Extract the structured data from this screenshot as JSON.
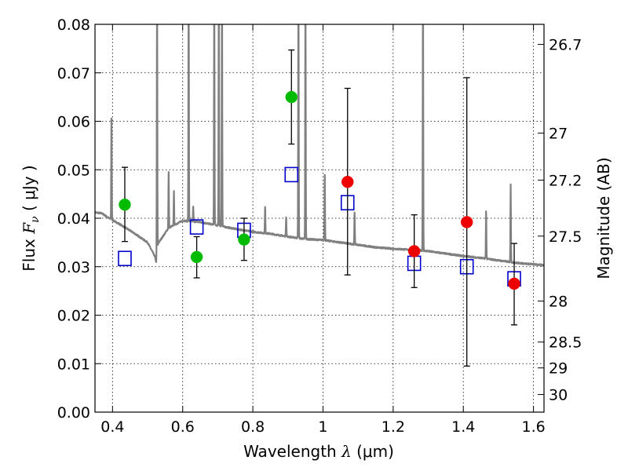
{
  "chart_data": {
    "type": "scatter",
    "xlabel": "Wavelength",
    "xlabel_symbol": "λ",
    "xlabel_unit": "(μm)",
    "ylabel": "Flux",
    "ylabel_symbol": "F",
    "ylabel_subscript": "ν",
    "ylabel_unit": "( μJy )",
    "y2label": "Magnitude (AB)",
    "xlim": [
      0.35,
      1.63
    ],
    "ylim": [
      0.0,
      0.08
    ],
    "grid": true,
    "x_ticks": [
      {
        "value": 0.4,
        "label": "0.4"
      },
      {
        "value": 0.6,
        "label": "0.6"
      },
      {
        "value": 0.8,
        "label": "0.8"
      },
      {
        "value": 1.0,
        "label": "1"
      },
      {
        "value": 1.2,
        "label": "1.2"
      },
      {
        "value": 1.4,
        "label": "1.4"
      },
      {
        "value": 1.6,
        "label": "1.6"
      }
    ],
    "y_ticks": [
      {
        "value": 0.0,
        "label": "0.00"
      },
      {
        "value": 0.01,
        "label": "0.01"
      },
      {
        "value": 0.02,
        "label": "0.02"
      },
      {
        "value": 0.03,
        "label": "0.03"
      },
      {
        "value": 0.04,
        "label": "0.04"
      },
      {
        "value": 0.05,
        "label": "0.05"
      },
      {
        "value": 0.06,
        "label": "0.06"
      },
      {
        "value": 0.07,
        "label": "0.07"
      },
      {
        "value": 0.08,
        "label": "0.08"
      }
    ],
    "y2_ticks": [
      {
        "mag": 26.7,
        "label": "26.7"
      },
      {
        "mag": 27.0,
        "label": "27"
      },
      {
        "mag": 27.2,
        "label": "27.2"
      },
      {
        "mag": 27.5,
        "label": "27.5"
      },
      {
        "mag": 28.0,
        "label": "28"
      },
      {
        "mag": 28.5,
        "label": "28.5"
      },
      {
        "mag": 29.0,
        "label": "29"
      },
      {
        "mag": 30.0,
        "label": "30"
      }
    ],
    "series": [
      {
        "kind": "model_spectrum",
        "color": "#808080",
        "continuum": [
          [
            0.35,
            0.0412
          ],
          [
            0.37,
            0.041
          ],
          [
            0.39,
            0.04
          ],
          [
            0.42,
            0.0388
          ],
          [
            0.46,
            0.037
          ],
          [
            0.5,
            0.035
          ],
          [
            0.52,
            0.0322
          ],
          [
            0.525,
            0.0308
          ],
          [
            0.53,
            0.0348
          ],
          [
            0.56,
            0.038
          ],
          [
            0.6,
            0.0395
          ],
          [
            0.65,
            0.0392
          ],
          [
            0.7,
            0.0385
          ],
          [
            0.75,
            0.0378
          ],
          [
            0.8,
            0.0372
          ],
          [
            0.85,
            0.0368
          ],
          [
            0.9,
            0.0362
          ],
          [
            0.95,
            0.0357
          ],
          [
            1.0,
            0.0355
          ],
          [
            1.05,
            0.035
          ],
          [
            1.1,
            0.0345
          ],
          [
            1.15,
            0.034
          ],
          [
            1.2,
            0.0337
          ],
          [
            1.25,
            0.0335
          ],
          [
            1.3,
            0.0332
          ],
          [
            1.35,
            0.0327
          ],
          [
            1.4,
            0.0322
          ],
          [
            1.45,
            0.0318
          ],
          [
            1.5,
            0.0313
          ],
          [
            1.55,
            0.0308
          ],
          [
            1.6,
            0.0305
          ],
          [
            1.63,
            0.0303
          ]
        ],
        "lines": [
          {
            "x": 0.397,
            "peak": 0.0615
          },
          {
            "x": 0.527,
            "peak": 0.09
          },
          {
            "x": 0.56,
            "peak": 0.0495
          },
          {
            "x": 0.575,
            "peak": 0.0455
          },
          {
            "x": 0.617,
            "peak": 0.09
          },
          {
            "x": 0.63,
            "peak": 0.0425
          },
          {
            "x": 0.69,
            "peak": 0.09
          },
          {
            "x": 0.703,
            "peak": 0.09
          },
          {
            "x": 0.712,
            "peak": 0.09
          },
          {
            "x": 0.835,
            "peak": 0.0425
          },
          {
            "x": 0.895,
            "peak": 0.0405
          },
          {
            "x": 0.93,
            "peak": 0.09
          },
          {
            "x": 0.95,
            "peak": 0.09
          },
          {
            "x": 1.005,
            "peak": 0.0495
          },
          {
            "x": 1.09,
            "peak": 0.0415
          },
          {
            "x": 1.285,
            "peak": 0.09
          },
          {
            "x": 1.465,
            "peak": 0.0418
          },
          {
            "x": 1.535,
            "peak": 0.047
          }
        ]
      },
      {
        "kind": "model_bandpass",
        "marker": "open-square",
        "color": "#0000cc",
        "points": [
          {
            "x": 0.435,
            "y": 0.0317
          },
          {
            "x": 0.64,
            "y": 0.0382
          },
          {
            "x": 0.775,
            "y": 0.0375
          },
          {
            "x": 0.91,
            "y": 0.049
          },
          {
            "x": 1.07,
            "y": 0.0432
          },
          {
            "x": 1.26,
            "y": 0.0307
          },
          {
            "x": 1.41,
            "y": 0.03
          },
          {
            "x": 1.545,
            "y": 0.0275
          }
        ]
      },
      {
        "kind": "observed_optical",
        "marker": "filled-circle",
        "color": "#00bb00",
        "points": [
          {
            "x": 0.435,
            "y": 0.0428,
            "lo": 0.0352,
            "hi": 0.0505
          },
          {
            "x": 0.64,
            "y": 0.032,
            "lo": 0.0277,
            "hi": 0.0362
          },
          {
            "x": 0.775,
            "y": 0.0356,
            "lo": 0.0313,
            "hi": 0.04
          },
          {
            "x": 0.91,
            "y": 0.065,
            "lo": 0.0553,
            "hi": 0.0747
          }
        ]
      },
      {
        "kind": "observed_nir",
        "marker": "filled-circle",
        "color": "#ee0000",
        "points": [
          {
            "x": 1.07,
            "y": 0.0475,
            "lo": 0.0283,
            "hi": 0.0668
          },
          {
            "x": 1.26,
            "y": 0.0332,
            "lo": 0.0257,
            "hi": 0.0407
          },
          {
            "x": 1.41,
            "y": 0.0392,
            "lo": 0.0095,
            "hi": 0.069
          },
          {
            "x": 1.545,
            "y": 0.0265,
            "lo": 0.018,
            "hi": 0.0348
          }
        ]
      }
    ]
  }
}
